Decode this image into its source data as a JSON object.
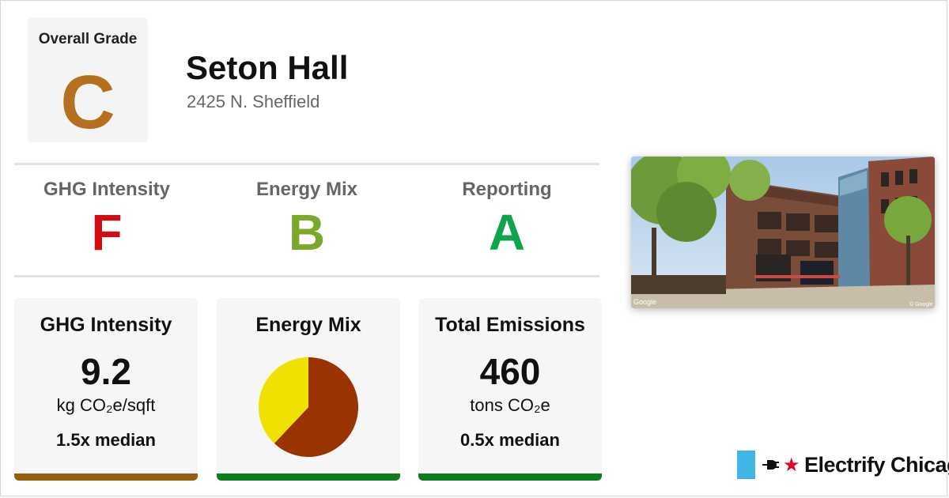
{
  "colors": {
    "grade_c": "#b5701f",
    "grade_f": "#d40c13",
    "grade_b": "#7aa82a",
    "grade_a": "#0da54b",
    "bar_brown": "#965f0e",
    "bar_green": "#0b7d1a",
    "pie_gas": "#993300",
    "pie_electric": "#f0e200",
    "brand_blue": "#41b6e6",
    "brand_red": "#e4002b"
  },
  "overall": {
    "label": "Overall Grade",
    "grade": "C"
  },
  "building": {
    "name": "Seton Hall",
    "address": "2425 N. Sheffield"
  },
  "grades": [
    {
      "label": "GHG Intensity",
      "grade": "F"
    },
    {
      "label": "Energy Mix",
      "grade": "B"
    },
    {
      "label": "Reporting",
      "grade": "A"
    }
  ],
  "cards": {
    "ghg": {
      "title": "GHG Intensity",
      "value": "9.2",
      "unit": "kg CO₂e/sqft",
      "median": "1.5x median"
    },
    "mix": {
      "title": "Energy Mix"
    },
    "emissions": {
      "title": "Total Emissions",
      "value": "460",
      "unit": "tons CO₂e",
      "median": "0.5x median"
    }
  },
  "chart_data": {
    "type": "pie",
    "title": "Energy Mix",
    "slices": [
      {
        "value": 62,
        "color": "#993300"
      },
      {
        "value": 38,
        "color": "#f0e200"
      }
    ]
  },
  "photo": {
    "watermark_left": "Google",
    "watermark_right": "© Google"
  },
  "brand": {
    "name": "Electrify Chicago",
    "star_icon": "★"
  }
}
